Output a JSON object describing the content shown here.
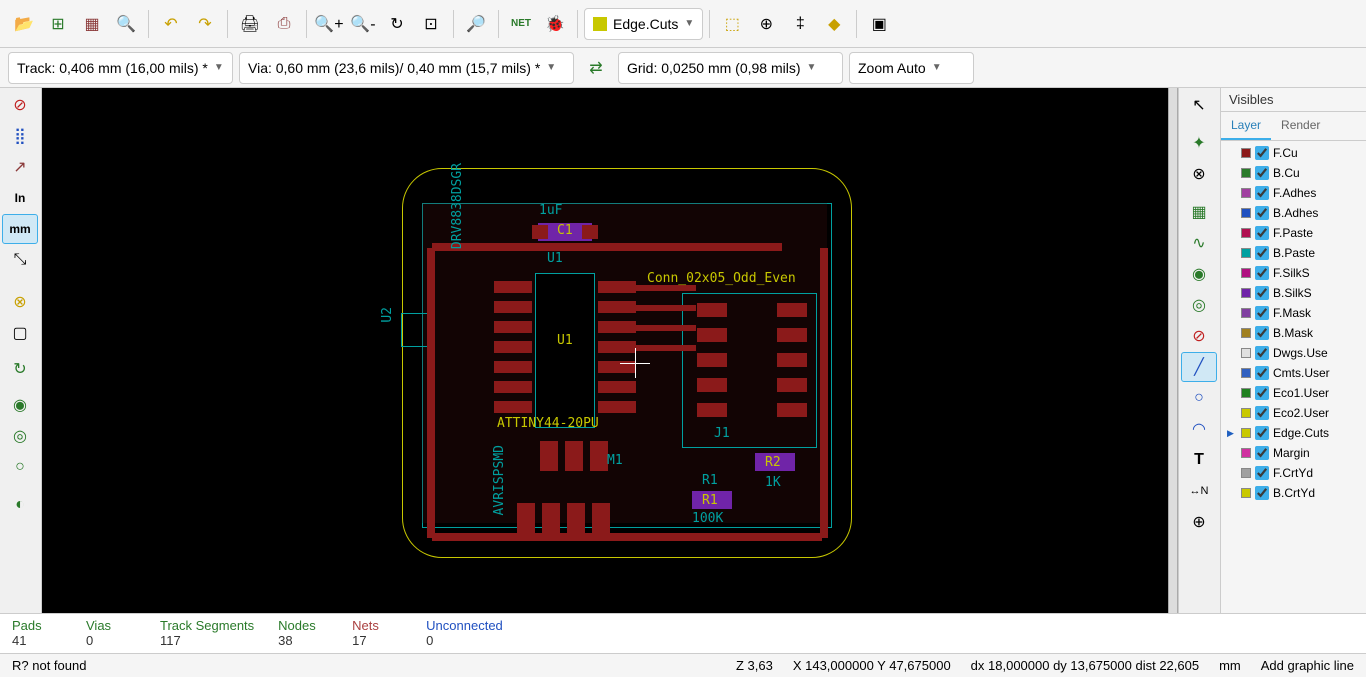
{
  "toolbar1": {
    "layer_selector": "Edge.Cuts",
    "layer_swatch_color": "#c8c800"
  },
  "toolbar2": {
    "track": "Track: 0,406 mm (16,00 mils) *",
    "via": "Via: 0,60 mm (23,6 mils)/ 0,40 mm (15,7 mils) *",
    "grid": "Grid: 0,0250 mm (0,98 mils)",
    "zoom": "Zoom Auto"
  },
  "panel": {
    "title": "Visibles",
    "tabs": {
      "layer": "Layer",
      "render": "Render"
    },
    "layers": [
      {
        "name": "F.Cu",
        "color": "#8b1a1a",
        "active": false
      },
      {
        "name": "B.Cu",
        "color": "#2a7a2a",
        "active": false
      },
      {
        "name": "F.Adhes",
        "color": "#a040a0",
        "active": false
      },
      {
        "name": "B.Adhes",
        "color": "#2050c0",
        "active": false
      },
      {
        "name": "F.Paste",
        "color": "#b01050",
        "active": false
      },
      {
        "name": "B.Paste",
        "color": "#00a0a0",
        "active": false
      },
      {
        "name": "F.SilkS",
        "color": "#b01080",
        "active": false
      },
      {
        "name": "B.SilkS",
        "color": "#7024a8",
        "active": false
      },
      {
        "name": "F.Mask",
        "color": "#8040a0",
        "active": false
      },
      {
        "name": "B.Mask",
        "color": "#a08020",
        "active": false
      },
      {
        "name": "Dwgs.Use",
        "color": "#e0e0e0",
        "active": false
      },
      {
        "name": "Cmts.User",
        "color": "#3060c0",
        "active": false
      },
      {
        "name": "Eco1.User",
        "color": "#208020",
        "active": false
      },
      {
        "name": "Eco2.User",
        "color": "#c8c800",
        "active": false
      },
      {
        "name": "Edge.Cuts",
        "color": "#c8c800",
        "active": true
      },
      {
        "name": "Margin",
        "color": "#d030a0",
        "active": false
      },
      {
        "name": "F.CrtYd",
        "color": "#a0a0a0",
        "active": false
      },
      {
        "name": "B.CrtYd",
        "color": "#c8c800",
        "active": false
      }
    ]
  },
  "stats": {
    "pads_label": "Pads",
    "pads_val": "41",
    "vias_label": "Vias",
    "vias_val": "0",
    "tracks_label": "Track Segments",
    "tracks_val": "117",
    "nodes_label": "Nodes",
    "nodes_val": "38",
    "nets_label": "Nets",
    "nets_val": "17",
    "unconn_label": "Unconnected",
    "unconn_val": "0"
  },
  "status": {
    "msg": "R? not found",
    "z": "Z 3,63",
    "xy": "X 143,000000  Y 47,675000",
    "dxy": "dx 18,000000  dy 13,675000  dist 22,605",
    "unit": "mm",
    "mode": "Add graphic line"
  },
  "pcb": {
    "refs": {
      "u1_top": "U1",
      "c1": "C1",
      "luf": "1uF",
      "u1_mid": "U1",
      "u2": "U2",
      "r1a": "R1",
      "r1b": "R1",
      "r2": "R2",
      "1k": "1K",
      "100k": "100K",
      "j1": "J1",
      "m1": "M1",
      "conn": "Conn_02x05_Odd_Even",
      "attiny": "ATTINY44-20PU",
      "avrisp": "AVRISPSMD",
      "drv": "DRV8838DSGR"
    },
    "colors": {
      "edge": "#c8c800",
      "silk": "#00a0a0",
      "cu": "#8b1a1a",
      "chip": "#7024a8",
      "bg": "#000000"
    }
  }
}
